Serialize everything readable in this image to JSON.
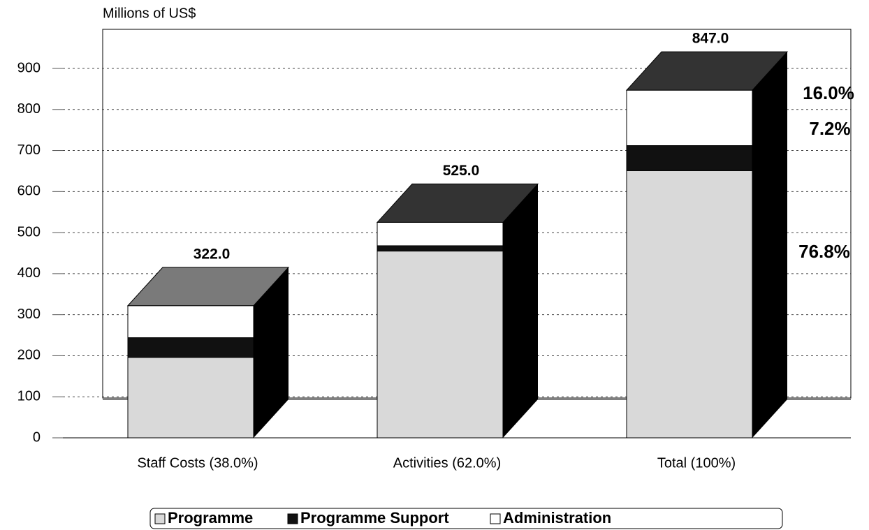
{
  "chart_data": {
    "type": "bar3d_stacked",
    "y_axis_label": "Millions of US$",
    "categories": [
      "Staff Costs (38.0%)",
      "Activities (62.0%)",
      "Total (100%)"
    ],
    "series": [
      {
        "name": "Programme",
        "color": "#d9d9d9",
        "values": [
          196,
          455,
          651
        ]
      },
      {
        "name": "Programme Support",
        "color": "#111111",
        "values": [
          48,
          13,
          61
        ]
      },
      {
        "name": "Administration",
        "color": "#ffffff",
        "values": [
          78,
          57,
          135
        ]
      }
    ],
    "totals": [
      322,
      525,
      847
    ],
    "total_labels": [
      "322.0",
      "525.0",
      "847.0"
    ],
    "annotations": [
      "76.8%",
      "7.2%",
      "16.0%"
    ],
    "ylim": [
      0,
      900
    ],
    "yticks": [
      0,
      100,
      200,
      300,
      400,
      500,
      600,
      700,
      800,
      900
    ],
    "grid": true
  }
}
